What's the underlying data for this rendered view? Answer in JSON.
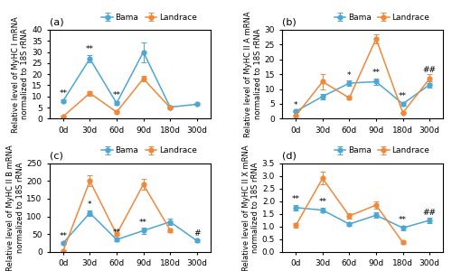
{
  "chart_data": [
    {
      "type": "line",
      "title": "(a)",
      "y_label": "Relative level of MyHC I mRNA\nnormalized to 18S rRNA",
      "categories": [
        "0d",
        "30d",
        "60d",
        "90d",
        "180d",
        "300d"
      ],
      "ylim": [
        0,
        40
      ],
      "yticks": [
        0,
        5,
        10,
        15,
        20,
        25,
        30,
        35,
        40
      ],
      "legend": "upper center",
      "series": [
        {
          "name": "Bama",
          "color": "#4da6d4",
          "marker": "o",
          "line_style": "solid",
          "values": [
            8.0,
            27.0,
            7.0,
            30.0,
            5.2,
            6.5
          ],
          "errors": [
            0.5,
            1.5,
            0.8,
            4.5,
            0.5,
            0.4
          ]
        },
        {
          "name": "Landrace",
          "color": "#f0883a",
          "marker": "o",
          "line_style": "solid",
          "values": [
            1.0,
            11.5,
            3.0,
            18.0,
            5.0,
            null
          ],
          "errors": [
            0.2,
            1.0,
            0.3,
            1.2,
            0.4,
            null
          ]
        }
      ],
      "annotations": [
        {
          "text": "**",
          "x": "0d",
          "y": 9.5
        },
        {
          "text": "**",
          "x": "30d",
          "y": 29.5
        },
        {
          "text": "**",
          "x": "60d",
          "y": 8.5
        }
      ]
    },
    {
      "type": "line",
      "title": "(b)",
      "y_label": "Relative level of MyHC II A mRNA\nnormalized to 18S rRNA",
      "categories": [
        "0d",
        "30d",
        "60d",
        "90d",
        "180d",
        "300d"
      ],
      "ylim": [
        0,
        30
      ],
      "yticks": [
        0,
        5,
        10,
        15,
        20,
        25,
        30
      ],
      "legend": "upper center",
      "series": [
        {
          "name": "Bama",
          "color": "#4da6d4",
          "marker": "o",
          "line_style": "solid",
          "values": [
            2.5,
            7.5,
            12.0,
            12.5,
            5.0,
            11.5
          ],
          "errors": [
            0.3,
            1.0,
            0.8,
            1.0,
            0.5,
            1.0
          ]
        },
        {
          "name": "Landrace",
          "color": "#f0883a",
          "marker": "o",
          "line_style": "solid",
          "values": [
            1.0,
            12.5,
            7.0,
            27.0,
            2.0,
            13.5
          ],
          "errors": [
            0.2,
            2.5,
            0.5,
            1.5,
            0.2,
            1.5
          ]
        }
      ],
      "annotations": [
        {
          "text": "*",
          "x": "0d",
          "y": 3.2
        },
        {
          "text": "*",
          "x": "60d",
          "y": 13.2
        },
        {
          "text": "**",
          "x": "90d",
          "y": 14.2
        },
        {
          "text": "**",
          "x": "180d",
          "y": 6.2
        },
        {
          "text": "##",
          "x": "300d",
          "y": 15.2
        }
      ]
    },
    {
      "type": "line",
      "title": "(c)",
      "y_label": "Relative level of MyHC II B mRNA\nnormalized to 18S rRNA",
      "categories": [
        "0d",
        "30d",
        "60d",
        "90d",
        "180d",
        "300d"
      ],
      "ylim": [
        0,
        250
      ],
      "yticks": [
        0,
        50,
        100,
        150,
        200,
        250
      ],
      "legend": "upper center",
      "series": [
        {
          "name": "Bama",
          "color": "#4da6d4",
          "marker": "o",
          "line_style": "solid",
          "values": [
            25.0,
            110.0,
            35.0,
            60.0,
            85.0,
            32.0
          ],
          "errors": [
            3.0,
            8.0,
            5.0,
            8.0,
            8.0,
            4.0
          ]
        },
        {
          "name": "Landrace",
          "color": "#f0883a",
          "marker": "o",
          "line_style": "solid",
          "values": [
            3.0,
            200.0,
            50.0,
            190.0,
            62.0,
            null
          ],
          "errors": [
            1.0,
            15.0,
            5.0,
            15.0,
            5.0,
            null
          ]
        }
      ],
      "annotations": [
        {
          "text": "**",
          "x": "0d",
          "y": 32.0
        },
        {
          "text": "*",
          "x": "30d",
          "y": 122.0
        },
        {
          "text": "**",
          "x": "60d",
          "y": 43.0
        },
        {
          "text": "**",
          "x": "90d",
          "y": 72.0
        },
        {
          "text": "#",
          "x": "300d",
          "y": 40.0
        }
      ]
    },
    {
      "type": "line",
      "title": "(d)",
      "y_label": "Relative level of MyHC II X mRNA\nnormalized to 18S rRNA",
      "categories": [
        "0d",
        "30d",
        "60d",
        "90d",
        "180d",
        "300d"
      ],
      "ylim": [
        0,
        3.5
      ],
      "yticks": [
        0.0,
        0.5,
        1.0,
        1.5,
        2.0,
        2.5,
        3.0,
        3.5
      ],
      "legend": "upper center",
      "series": [
        {
          "name": "Bama",
          "color": "#4da6d4",
          "marker": "o",
          "line_style": "solid",
          "values": [
            1.75,
            1.65,
            1.1,
            1.45,
            0.95,
            1.25
          ],
          "errors": [
            0.1,
            0.1,
            0.08,
            0.1,
            0.08,
            0.1
          ]
        },
        {
          "name": "Landrace",
          "color": "#f0883a",
          "marker": "o",
          "line_style": "solid",
          "values": [
            1.05,
            2.9,
            1.42,
            1.85,
            0.38,
            null
          ],
          "errors": [
            0.08,
            0.25,
            0.12,
            0.15,
            0.05,
            null
          ]
        }
      ],
      "annotations": [
        {
          "text": "**",
          "x": "0d",
          "y": 1.93
        },
        {
          "text": "**",
          "x": "30d",
          "y": 1.83
        },
        {
          "text": "**",
          "x": "180d",
          "y": 1.1
        },
        {
          "text": "##",
          "x": "300d",
          "y": 1.4
        }
      ]
    }
  ]
}
